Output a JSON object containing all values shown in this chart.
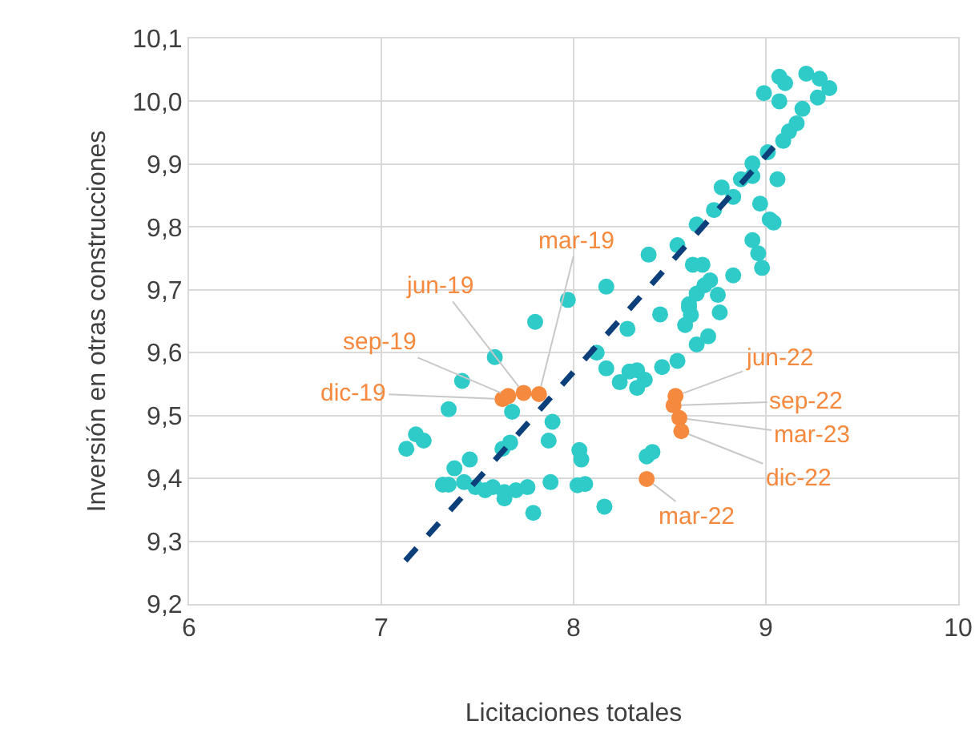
{
  "chart_data": {
    "type": "scatter",
    "xlabel": "Licitaciones totales",
    "ylabel": "Inversión en otras construcciones",
    "xlim": [
      6,
      10
    ],
    "xticks": [
      6,
      7,
      8,
      9,
      10
    ],
    "ylim": [
      9.2,
      10.1
    ],
    "yticks": [
      {
        "value": 9.2,
        "label": "9,2"
      },
      {
        "value": 9.3,
        "label": "9,3"
      },
      {
        "value": 9.4,
        "label": "9,4"
      },
      {
        "value": 9.5,
        "label": "9,5"
      },
      {
        "value": 9.6,
        "label": "9,6"
      },
      {
        "value": 9.7,
        "label": "9,7"
      },
      {
        "value": 9.8,
        "label": "9,8"
      },
      {
        "value": 9.9,
        "label": "9,9"
      },
      {
        "value": 10.0,
        "label": "10,0"
      },
      {
        "value": 10.1,
        "label": "10,1"
      }
    ],
    "grid": true,
    "marker": "circle",
    "series": [
      {
        "color": "#2ecbc9",
        "x": [
          7.13,
          7.18,
          7.22,
          7.35,
          7.35,
          7.42,
          7.38,
          7.46,
          7.32,
          7.43,
          7.49,
          7.54,
          7.58,
          7.64,
          7.64,
          7.7,
          7.76,
          7.88,
          7.79,
          8.02,
          8.06,
          8.16,
          7.59,
          7.8,
          7.97,
          8.17,
          8.39,
          7.68,
          7.89,
          7.87,
          7.67,
          7.63,
          8.03,
          8.04,
          8.12,
          8.17,
          8.28,
          8.24,
          8.29,
          8.33,
          8.37,
          8.33,
          8.38,
          8.41,
          8.58,
          8.64,
          8.7,
          8.54,
          8.46,
          8.64,
          8.54,
          8.62,
          8.6,
          8.61,
          8.45,
          9.07,
          9.1,
          8.99,
          9.07,
          9.21,
          9.28,
          9.33,
          9.27,
          9.19,
          9.16,
          9.12,
          9.09,
          9.01,
          8.93,
          8.93,
          8.87,
          8.77,
          8.83,
          9.06,
          8.97,
          8.73,
          9.02,
          9.04,
          8.93,
          8.96,
          8.98,
          8.67,
          8.83,
          8.71,
          8.68,
          8.64,
          8.75,
          8.6,
          8.76
        ],
        "values": [
          9.447,
          9.47,
          9.46,
          9.51,
          9.39,
          9.555,
          9.416,
          9.43,
          9.39,
          9.394,
          9.386,
          9.381,
          9.386,
          9.378,
          9.368,
          9.381,
          9.386,
          9.394,
          9.345,
          9.389,
          9.391,
          9.355,
          9.593,
          9.649,
          9.684,
          9.705,
          9.756,
          9.506,
          9.49,
          9.46,
          9.457,
          9.447,
          9.445,
          9.43,
          9.6,
          9.575,
          9.638,
          9.553,
          9.57,
          9.572,
          9.557,
          9.544,
          9.435,
          9.442,
          9.644,
          9.613,
          9.626,
          9.587,
          9.577,
          9.804,
          9.771,
          9.74,
          9.677,
          9.66,
          9.661,
          10.039,
          10.029,
          10.013,
          10.0,
          10.044,
          10.036,
          10.021,
          10.006,
          9.988,
          9.965,
          9.952,
          9.937,
          9.919,
          9.901,
          9.881,
          9.876,
          9.863,
          9.848,
          9.876,
          9.837,
          9.827,
          9.812,
          9.807,
          9.779,
          9.758,
          9.735,
          9.74,
          9.723,
          9.715,
          9.707,
          9.694,
          9.692,
          9.672,
          9.664
        ]
      },
      {
        "color": "#f5893e",
        "x": [
          7.82,
          7.74,
          7.66,
          7.63,
          8.38,
          8.53,
          8.52,
          8.55,
          8.56
        ],
        "values": [
          9.534,
          9.536,
          9.531,
          9.526,
          9.399,
          9.531,
          9.516,
          9.496,
          9.475
        ]
      },
      {
        "type": "line",
        "color": "#0d3f7a",
        "line_style": "dashed",
        "marker": "none",
        "x": [
          7.125,
          9.04
        ],
        "values": [
          9.269,
          9.927
        ]
      }
    ],
    "annotations": [
      {
        "text": "mar-19",
        "x": 7.82,
        "y": 9.534
      },
      {
        "text": "jun-19",
        "x": 7.74,
        "y": 9.536
      },
      {
        "text": "sep-19",
        "x": 7.66,
        "y": 9.531
      },
      {
        "text": "dic-19",
        "x": 7.63,
        "y": 9.526
      },
      {
        "text": "jun-22",
        "x": 8.53,
        "y": 9.531
      },
      {
        "text": "sep-22",
        "x": 8.52,
        "y": 9.516
      },
      {
        "text": "mar-23",
        "x": 8.55,
        "y": 9.496
      },
      {
        "text": "dic-22",
        "x": 8.56,
        "y": 9.475
      },
      {
        "text": "mar-22",
        "x": 8.38,
        "y": 9.399
      }
    ]
  }
}
